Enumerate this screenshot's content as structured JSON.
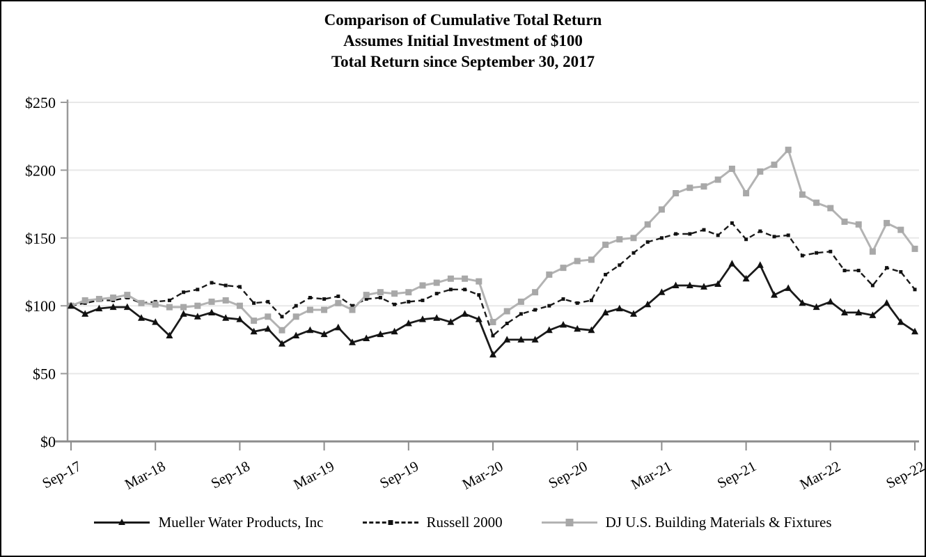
{
  "title": {
    "line1": "Comparison of Cumulative Total Return",
    "line2": "Assumes Initial Investment of $100",
    "line3": "Total Return since September 30, 2017"
  },
  "chart_data": {
    "type": "line",
    "x": [
      "Sep-17",
      "Oct-17",
      "Nov-17",
      "Dec-17",
      "Jan-18",
      "Feb-18",
      "Mar-18",
      "Apr-18",
      "May-18",
      "Jun-18",
      "Jul-18",
      "Aug-18",
      "Sep-18",
      "Oct-18",
      "Nov-18",
      "Dec-18",
      "Jan-19",
      "Feb-19",
      "Mar-19",
      "Apr-19",
      "May-19",
      "Jun-19",
      "Jul-19",
      "Aug-19",
      "Sep-19",
      "Oct-19",
      "Nov-19",
      "Dec-19",
      "Jan-20",
      "Feb-20",
      "Mar-20",
      "Apr-20",
      "May-20",
      "Jun-20",
      "Jul-20",
      "Aug-20",
      "Sep-20",
      "Oct-20",
      "Nov-20",
      "Dec-20",
      "Jan-21",
      "Feb-21",
      "Mar-21",
      "Apr-21",
      "May-21",
      "Jun-21",
      "Jul-21",
      "Aug-21",
      "Sep-21",
      "Oct-21",
      "Nov-21",
      "Dec-21",
      "Jan-22",
      "Feb-22",
      "Mar-22",
      "Apr-22",
      "May-22",
      "Jun-22",
      "Jul-22",
      "Aug-22",
      "Sep-22"
    ],
    "x_tick_labels": [
      "Sep-17",
      "Mar-18",
      "Sep-18",
      "Mar-19",
      "Sep-19",
      "Mar-20",
      "Sep-20",
      "Mar-21",
      "Sep-21",
      "Mar-22",
      "Sep-22"
    ],
    "y_tick_labels": [
      "$0",
      "$50",
      "$100",
      "$150",
      "$200",
      "$250"
    ],
    "y_tick_values": [
      0,
      50,
      100,
      150,
      200,
      250
    ],
    "ylim": [
      0,
      250
    ],
    "grid": "horizontal",
    "legend_position": "bottom",
    "series": [
      {
        "name": "Mueller Water Products, Inc",
        "line_style": "solid",
        "marker": "triangle",
        "color": "#1a1a1a",
        "marker_color": "#111111",
        "values": [
          100,
          94,
          98,
          99,
          99,
          91,
          88,
          78,
          94,
          92,
          95,
          91,
          90,
          81,
          83,
          72,
          78,
          82,
          79,
          84,
          73,
          76,
          79,
          81,
          87,
          90,
          91,
          88,
          94,
          90,
          64,
          75,
          75,
          75,
          82,
          86,
          83,
          82,
          95,
          98,
          94,
          101,
          110,
          115,
          115,
          114,
          116,
          131,
          120,
          130,
          108,
          113,
          102,
          99,
          103,
          95,
          95,
          93,
          102,
          88,
          81
        ]
      },
      {
        "name": "Russell 2000",
        "line_style": "dashed",
        "marker": "square-small",
        "color": "#1a1a1a",
        "marker_color": "#111111",
        "values": [
          100,
          102,
          104,
          104,
          106,
          102,
          103,
          104,
          110,
          112,
          117,
          115,
          114,
          102,
          103,
          92,
          100,
          106,
          105,
          107,
          100,
          105,
          106,
          101,
          103,
          104,
          109,
          112,
          112,
          108,
          78,
          87,
          94,
          97,
          100,
          105,
          102,
          104,
          123,
          130,
          139,
          147,
          150,
          153,
          153,
          156,
          152,
          161,
          149,
          155,
          151,
          152,
          137,
          139,
          140,
          126,
          126,
          115,
          128,
          125,
          112
        ]
      },
      {
        "name": "DJ U.S. Building Materials & Fixtures",
        "line_style": "solid",
        "marker": "square",
        "color": "#b3b3b3",
        "marker_color": "#a8a8a8",
        "values": [
          100,
          104,
          105,
          106,
          108,
          102,
          101,
          99,
          99,
          100,
          103,
          104,
          100,
          89,
          92,
          82,
          92,
          97,
          97,
          102,
          97,
          108,
          110,
          109,
          110,
          115,
          117,
          120,
          120,
          118,
          88,
          96,
          103,
          110,
          123,
          128,
          133,
          134,
          145,
          149,
          150,
          160,
          171,
          183,
          187,
          188,
          193,
          201,
          183,
          199,
          204,
          215,
          182,
          176,
          172,
          162,
          160,
          140,
          161,
          156,
          142
        ]
      }
    ],
    "colors": {
      "axis": "#8c8c8c",
      "gridline": "#e8e8e8",
      "text": "#000000"
    }
  }
}
